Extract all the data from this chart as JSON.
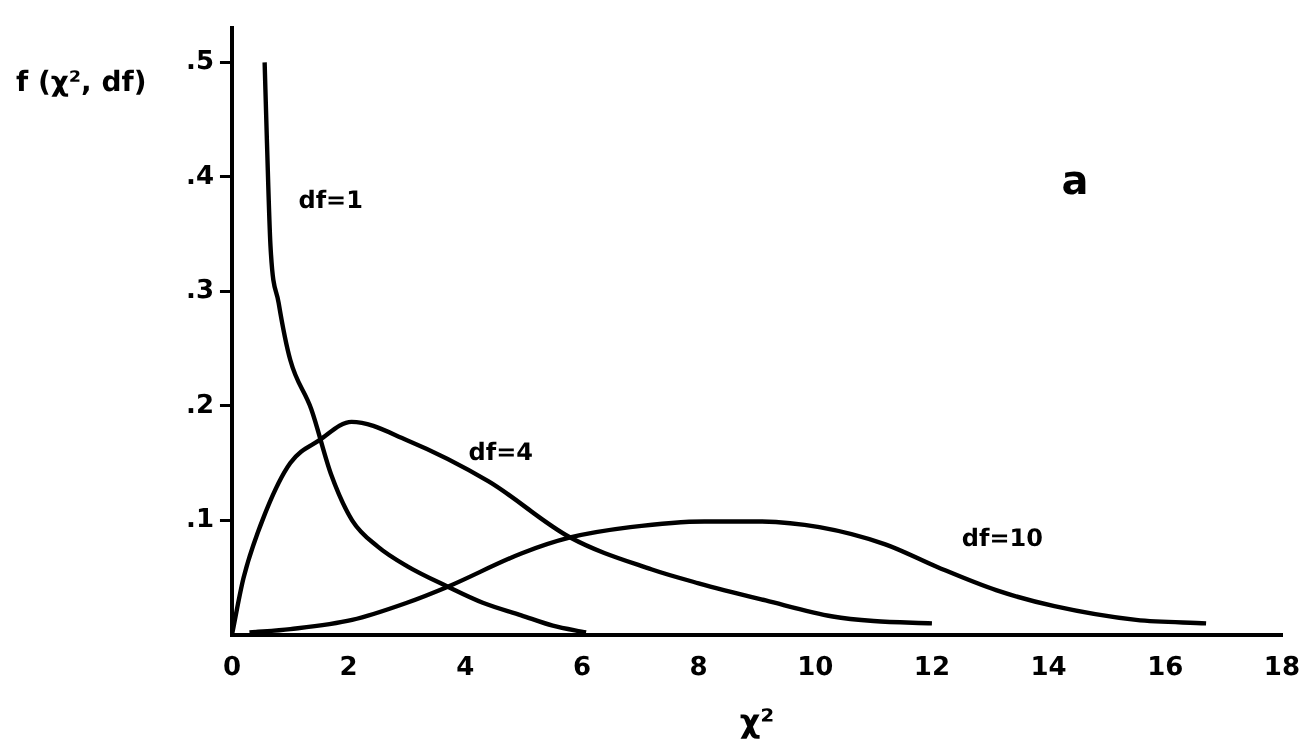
{
  "chart_data": {
    "type": "line",
    "xlabel": "χ²",
    "ylabel": "f (χ², df)",
    "annotations": [
      "a"
    ],
    "xlim": [
      0,
      18
    ],
    "xticks": [
      0,
      2,
      4,
      6,
      8,
      10,
      12,
      14,
      16,
      18
    ],
    "ylim": [
      0,
      0.53
    ],
    "yticks": [
      {
        "value": 0.1,
        "label": ".1"
      },
      {
        "value": 0.2,
        "label": ".2"
      },
      {
        "value": 0.3,
        "label": ".3"
      },
      {
        "value": 0.4,
        "label": ".4"
      },
      {
        "value": 0.5,
        "label": ".5"
      }
    ],
    "grid": false,
    "legend": false,
    "marker": "none",
    "line_style": "solid",
    "series": [
      {
        "name": "df=1",
        "color": "#000000",
        "x": [
          0.56,
          0.6,
          0.66,
          0.8,
          1.0,
          1.36,
          1.7,
          2.06,
          2.5,
          3,
          3.7,
          4.3,
          4.96,
          5.5,
          6.07
        ],
        "values": [
          0.5,
          0.43,
          0.34,
          0.29,
          0.24,
          0.197,
          0.14,
          0.1,
          0.077,
          0.06,
          0.042,
          0.028,
          0.017,
          0.008,
          0.002
        ]
      },
      {
        "name": "df=4",
        "color": "#000000",
        "x": [
          0,
          0.2,
          0.56,
          1,
          1.5,
          2.05,
          3,
          4.4,
          5.8,
          7.2,
          8,
          9.15,
          10.3,
          11,
          12
        ],
        "values": [
          0,
          0.05,
          0.105,
          0.15,
          0.17,
          0.186,
          0.17,
          0.134,
          0.085,
          0.057,
          0.045,
          0.03,
          0.016,
          0.012,
          0.01
        ]
      },
      {
        "name": "df=10",
        "color": "#000000",
        "x": [
          0.3,
          1,
          2.06,
          3,
          3.7,
          4.96,
          5.8,
          6.83,
          8.1,
          9,
          10.07,
          11.2,
          12.1,
          13.1,
          14.1,
          15.5,
          16.7
        ],
        "values": [
          0.002,
          0.005,
          0.013,
          0.028,
          0.042,
          0.071,
          0.085,
          0.094,
          0.099,
          0.099,
          0.094,
          0.079,
          0.059,
          0.039,
          0.025,
          0.013,
          0.01
        ]
      }
    ]
  }
}
